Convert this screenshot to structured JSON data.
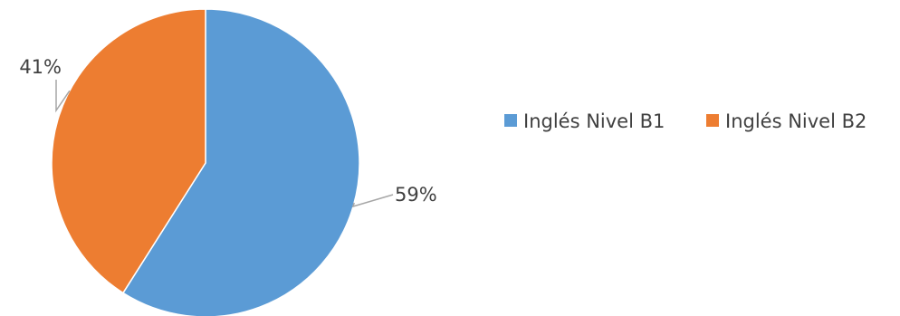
{
  "chart_data": {
    "type": "pie",
    "title": "",
    "categories": [
      "Inglés Nivel B1",
      "Inglés Nivel B2"
    ],
    "values": [
      59,
      41
    ],
    "labels": [
      "59%",
      "41%"
    ],
    "colors": [
      "#5B9BD5",
      "#ED7D31"
    ],
    "legend": "right",
    "start_angle_deg": 0,
    "direction": "clockwise"
  }
}
